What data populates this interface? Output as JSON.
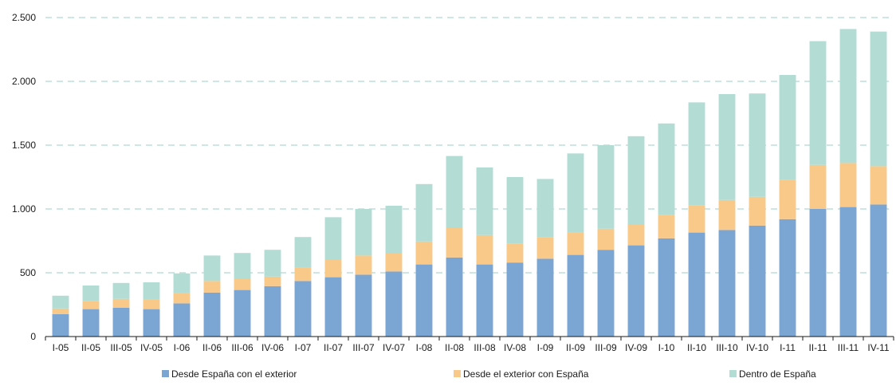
{
  "chart_data": {
    "type": "bar",
    "stacked": true,
    "title": "",
    "xlabel": "",
    "ylabel": "",
    "ylim": [
      0,
      2500
    ],
    "yticks": [
      0,
      500,
      1000,
      1500,
      2000,
      2500
    ],
    "ytick_labels": [
      "0",
      "500",
      "1.000",
      "1.500",
      "2.000",
      "2.500"
    ],
    "grid": "horizontal-dashed",
    "legend_position": "bottom",
    "categories": [
      "I-05",
      "II-05",
      "III-05",
      "IV-05",
      "I-06",
      "II-06",
      "III-06",
      "IV-06",
      "I-07",
      "II-07",
      "III-07",
      "IV-07",
      "I-08",
      "II-08",
      "III-08",
      "IV-08",
      "I-09",
      "II-09",
      "III-09",
      "IV-09",
      "I-10",
      "II-10",
      "III-10",
      "IV-10",
      "I-11",
      "II-11",
      "III-11",
      "IV-11"
    ],
    "series": [
      {
        "name": "Desde España con el exterior",
        "color": "#7ba6d4",
        "values": [
          175,
          215,
          225,
          215,
          260,
          345,
          365,
          395,
          435,
          465,
          485,
          510,
          565,
          620,
          565,
          580,
          610,
          640,
          680,
          715,
          770,
          815,
          835,
          870,
          920,
          1000,
          1015,
          1035
        ]
      },
      {
        "name": "Desde el exterior con España",
        "color": "#f9c98a",
        "values": [
          45,
          65,
          70,
          75,
          80,
          90,
          85,
          75,
          105,
          135,
          150,
          140,
          180,
          230,
          230,
          150,
          170,
          175,
          165,
          160,
          185,
          215,
          235,
          225,
          310,
          345,
          345,
          300
        ]
      },
      {
        "name": "Dentro de España",
        "color": "#b3ddd4",
        "values": [
          100,
          120,
          125,
          135,
          155,
          200,
          205,
          210,
          240,
          335,
          365,
          375,
          450,
          565,
          530,
          520,
          455,
          620,
          655,
          695,
          715,
          805,
          830,
          810,
          820,
          970,
          1050,
          1055
        ]
      }
    ]
  }
}
